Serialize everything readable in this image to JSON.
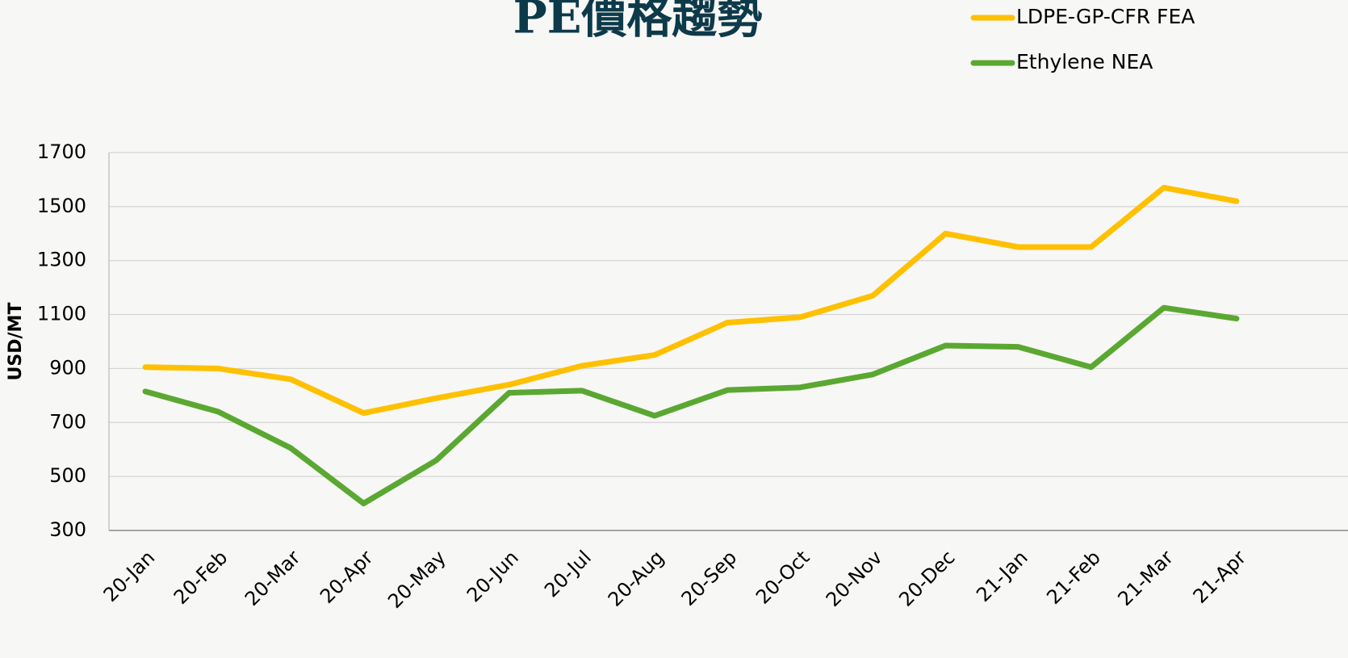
{
  "chart_data": {
    "type": "line",
    "title": "PE價格趨勢",
    "y_label": "USD/MT",
    "categories": [
      "20-Jan",
      "20-Feb",
      "20-Mar",
      "20-Apr",
      "20-May",
      "20-Jun",
      "20-Jul",
      "20-Aug",
      "20-Sep",
      "20-Oct",
      "20-Nov",
      "20-Dec",
      "21-Jan",
      "21-Feb",
      "21-Mar",
      "21-Apr"
    ],
    "series": [
      {
        "name": "LDPE-GP-CFR FEA",
        "color": "#ffc000",
        "values": [
          905,
          900,
          860,
          735,
          790,
          840,
          910,
          950,
          1070,
          1090,
          1170,
          1400,
          1350,
          1350,
          1570,
          1520
        ]
      },
      {
        "name": "Ethylene NEA",
        "color": "#5aa832",
        "values": [
          815,
          740,
          605,
          400,
          560,
          810,
          818,
          725,
          820,
          830,
          878,
          985,
          980,
          905,
          1125,
          1085
        ]
      }
    ],
    "ylim": [
      300,
      1700
    ],
    "yticks": [
      300,
      500,
      700,
      900,
      1100,
      1300,
      1500,
      1700
    ],
    "grid": true,
    "legend": "top-right"
  }
}
